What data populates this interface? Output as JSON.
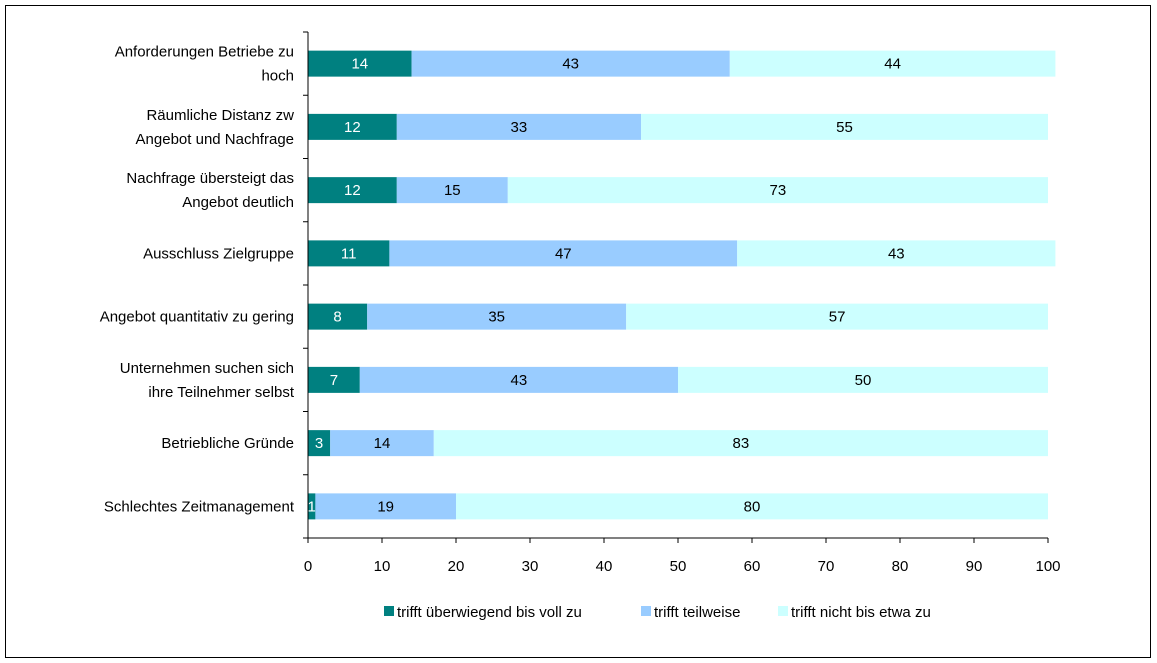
{
  "chart_data": {
    "type": "bar",
    "orientation": "horizontal",
    "stacked": true,
    "categories": [
      "Anforderungen Betriebe zu hoch",
      "Räumliche Distanz zw Angebot und Nachfrage",
      "Nachfrage übersteigt das Angebot deutlich",
      "Ausschluss Zielgruppe",
      "Angebot quantitativ zu gering",
      "Unternehmen suchen sich ihre Teilnehmer selbst",
      "Betriebliche Gründe",
      "Schlechtes Zeitmanagement"
    ],
    "category_label_lines": [
      [
        "Anforderungen Betriebe zu",
        "hoch"
      ],
      [
        "Räumliche Distanz zw",
        "Angebot und Nachfrage"
      ],
      [
        "Nachfrage übersteigt das",
        "Angebot deutlich"
      ],
      [
        "Ausschluss Zielgruppe"
      ],
      [
        "Angebot quantitativ zu gering"
      ],
      [
        "Unternehmen suchen sich",
        "ihre Teilnehmer selbst"
      ],
      [
        "Betriebliche Gründe"
      ],
      [
        "Schlechtes Zeitmanagement"
      ]
    ],
    "series": [
      {
        "name": "trifft überwiegend bis voll zu",
        "color": "#008080",
        "label_color": "#ffffff",
        "values": [
          14,
          12,
          12,
          11,
          8,
          7,
          3,
          1
        ]
      },
      {
        "name": "trifft teilweise",
        "color": "#99ccff",
        "label_color": "#000000",
        "values": [
          43,
          33,
          15,
          47,
          35,
          43,
          14,
          19
        ]
      },
      {
        "name": "trifft nicht bis etwa zu",
        "color": "#ccffff",
        "label_color": "#000000",
        "values": [
          44,
          55,
          73,
          43,
          57,
          50,
          83,
          80
        ]
      }
    ],
    "xlim": [
      0,
      100
    ],
    "x_ticks": [
      "0",
      "10",
      "20",
      "30",
      "40",
      "50",
      "60",
      "70",
      "80",
      "90",
      "100"
    ],
    "title": "",
    "xlabel": "",
    "ylabel": "",
    "grid": false,
    "legend_position": "bottom"
  }
}
